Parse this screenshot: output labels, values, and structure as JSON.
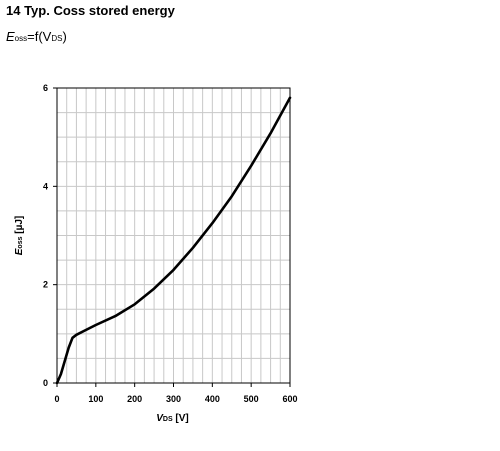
{
  "header": {
    "title": "14 Typ. Coss stored energy",
    "subtitle_pre": "E",
    "subtitle_sub": "oss",
    "subtitle_mid": "=f(V",
    "subtitle_sub2": "DS",
    "subtitle_post": ")"
  },
  "chart_data": {
    "type": "line",
    "xlabel_main": "V",
    "xlabel_sub": "DS",
    "xlabel_unit": " [V]",
    "ylabel_main": "E",
    "ylabel_sub": "oss",
    "ylabel_unit": " [µJ]",
    "xlim": [
      0,
      600
    ],
    "ylim": [
      0,
      6
    ],
    "xticks": [
      0,
      100,
      200,
      300,
      400,
      500,
      600
    ],
    "yticks": [
      0,
      2,
      4,
      6
    ],
    "grid": true,
    "series": [
      {
        "x": [
          0,
          10,
          20,
          30,
          40,
          50,
          75,
          100,
          150,
          200,
          250,
          300,
          350,
          400,
          450,
          500,
          550,
          600
        ],
        "y": [
          0,
          0.18,
          0.45,
          0.72,
          0.92,
          0.98,
          1.08,
          1.18,
          1.36,
          1.6,
          1.92,
          2.3,
          2.75,
          3.25,
          3.8,
          4.42,
          5.08,
          5.8
        ]
      }
    ]
  }
}
